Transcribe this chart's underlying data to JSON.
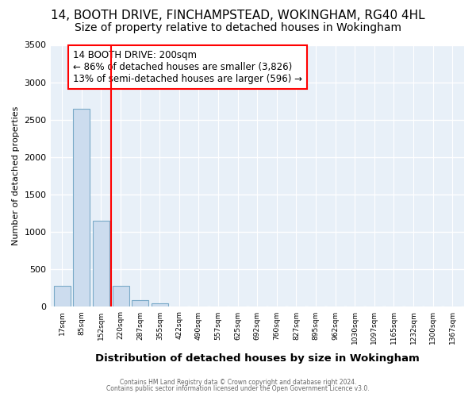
{
  "title": "14, BOOTH DRIVE, FINCHAMPSTEAD, WOKINGHAM, RG40 4HL",
  "subtitle": "Size of property relative to detached houses in Wokingham",
  "xlabel": "Distribution of detached houses by size in Wokingham",
  "ylabel": "Number of detached properties",
  "footnote1": "Contains HM Land Registry data © Crown copyright and database right 2024.",
  "footnote2": "Contains public sector information licensed under the Open Government Licence v3.0.",
  "annotation_line1": "14 BOOTH DRIVE: 200sqm",
  "annotation_line2": "← 86% of detached houses are smaller (3,826)",
  "annotation_line3": "13% of semi-detached houses are larger (596) →",
  "bar_labels": [
    "17sqm",
    "85sqm",
    "152sqm",
    "220sqm",
    "287sqm",
    "355sqm",
    "422sqm",
    "490sqm",
    "557sqm",
    "625sqm",
    "692sqm",
    "760sqm",
    "827sqm",
    "895sqm",
    "962sqm",
    "1030sqm",
    "1097sqm",
    "1165sqm",
    "1232sqm",
    "1300sqm",
    "1367sqm"
  ],
  "bar_values": [
    280,
    2650,
    1150,
    280,
    90,
    50,
    5,
    0,
    0,
    0,
    0,
    0,
    0,
    0,
    0,
    0,
    0,
    0,
    0,
    0,
    0
  ],
  "bar_color": "#ccdcee",
  "bar_edge_color": "#7aaac8",
  "red_line_x": 2.5,
  "ylim": [
    0,
    3500
  ],
  "yticks": [
    0,
    500,
    1000,
    1500,
    2000,
    2500,
    3000,
    3500
  ],
  "background_color": "#ffffff",
  "grid_color": "#dce6f0",
  "title_fontsize": 11,
  "subtitle_fontsize": 10
}
